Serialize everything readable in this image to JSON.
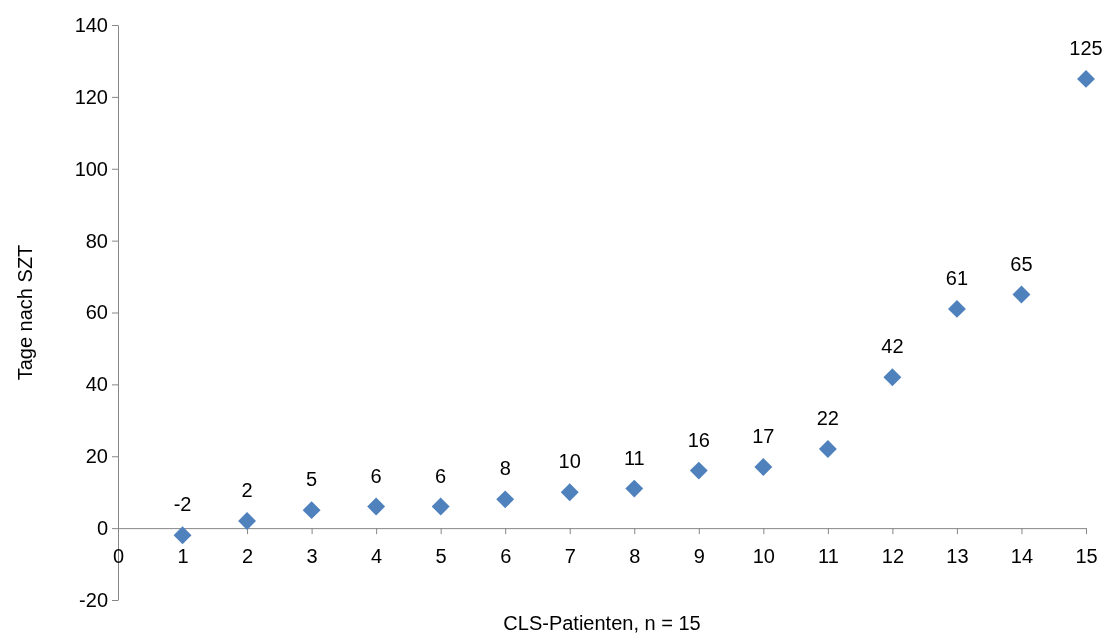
{
  "chart_data": {
    "type": "scatter",
    "xlabel": "CLS-Patienten, n = 15",
    "ylabel": "Tage nach SZT",
    "x": [
      1,
      2,
      3,
      4,
      5,
      6,
      7,
      8,
      9,
      10,
      11,
      12,
      13,
      14,
      15
    ],
    "series": [
      {
        "color": "#4f81bd",
        "values": [
          -2,
          2,
          5,
          6,
          6,
          8,
          10,
          11,
          16,
          17,
          22,
          42,
          61,
          65,
          125
        ]
      }
    ],
    "xlim": [
      0,
      15
    ],
    "xticks": [
      0,
      1,
      2,
      3,
      4,
      5,
      6,
      7,
      8,
      9,
      10,
      11,
      12,
      13,
      14,
      15
    ],
    "ylim": [
      -20,
      140
    ],
    "yticks": [
      -20,
      0,
      20,
      40,
      60,
      80,
      100,
      120,
      140
    ],
    "marker": "diamond",
    "data_labels": true,
    "grid": false
  }
}
